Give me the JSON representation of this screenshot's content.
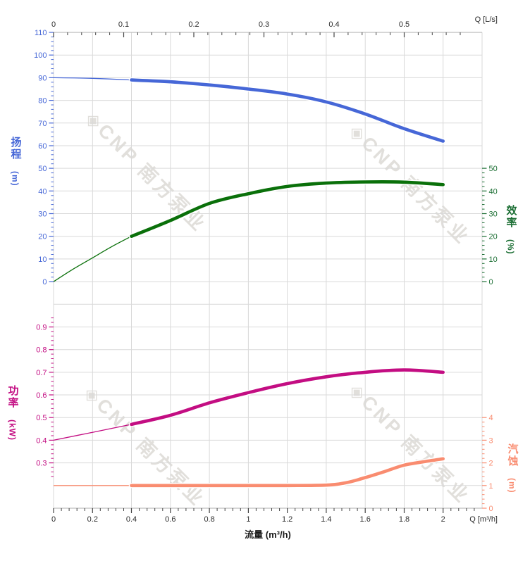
{
  "watermark": {
    "text": "◈CNP 南方泵业"
  },
  "titles": {
    "head": {
      "text": "扬程",
      "unit": "(m)"
    },
    "efficiency": {
      "text": "效率",
      "unit": "(%)"
    },
    "power": {
      "text": "功率",
      "unit": "(kW)"
    },
    "npsh": {
      "text": "汽蚀",
      "unit": "(m)"
    },
    "flow": {
      "text": "流量 (m³/h)"
    },
    "top_axis": {
      "text": "Q [L/s]"
    },
    "bottom_axis": {
      "text": "Q [m³/h]"
    }
  },
  "colors": {
    "head": "#4667d7",
    "efficiency_curve": "#0a700a",
    "efficiency_text": "#1b6e33",
    "power": "#c30d82",
    "npsh": "#f98c70",
    "grid": "#d9d9d9",
    "axis_line": "#bdbdbd",
    "axis_tick": "#444444"
  },
  "chart_data": {
    "type": "line",
    "x_bottom": {
      "unit": "m³/h",
      "range": [
        0,
        2.2
      ],
      "major_values": [
        0,
        0.2,
        0.4,
        0.6,
        0.8,
        1,
        1.2,
        1.4,
        1.6,
        1.8,
        2
      ],
      "major_labels": [
        "0",
        "0.2",
        "0.4",
        "0.6",
        "0.8",
        "1",
        "1.2",
        "1.4",
        "1.6",
        "1.8",
        "2"
      ],
      "minor_step": 0.04,
      "minor_max": 2.2
    },
    "x_top": {
      "unit": "L/s",
      "range": [
        0,
        0.611
      ],
      "major_values": [
        0,
        0.1,
        0.2,
        0.3,
        0.4,
        0.5
      ],
      "major_labels": [
        "0",
        "0.1",
        "0.2",
        "0.3",
        "0.4",
        "0.5"
      ],
      "minor_step": 0.02,
      "minor_max": 0.6
    },
    "y_axes": {
      "head": {
        "side": "left",
        "color": "#4667d7",
        "major_values": [
          0,
          10,
          20,
          30,
          40,
          50,
          60,
          70,
          80,
          90,
          100,
          110
        ],
        "major_labels": [
          "0",
          "10",
          "20",
          "30",
          "40",
          "50",
          "60",
          "70",
          "80",
          "90",
          "100",
          "110"
        ],
        "minor_step": 2,
        "minor_min": 0,
        "minor_max": 110
      },
      "eff": {
        "side": "right",
        "color": "#1b6e33",
        "major_values": [
          0,
          10,
          20,
          30,
          40,
          50
        ],
        "major_labels": [
          "0",
          "10",
          "20",
          "30",
          "40",
          "50"
        ],
        "minor_step": 2,
        "minor_min": 0,
        "minor_max": 50
      },
      "power": {
        "side": "left",
        "color": "#c30d82",
        "major_values": [
          0.3,
          0.4,
          0.5,
          0.6,
          0.7,
          0.8,
          0.9
        ],
        "major_labels": [
          "0.3",
          "0.4",
          "0.5",
          "0.6",
          "0.7",
          "0.8",
          "0.9"
        ],
        "minor_step": 0.02,
        "minor_min": 0.24,
        "minor_max": 0.94
      },
      "npsh": {
        "side": "right",
        "color": "#f98c70",
        "major_values": [
          0,
          1,
          2,
          3,
          4
        ],
        "major_labels": [
          "0",
          "1",
          "2",
          "3",
          "4"
        ],
        "minor_step": 0.2,
        "minor_min": 0,
        "minor_max": 4
      }
    },
    "series": [
      {
        "name": "head",
        "label": "扬程",
        "axis": "head",
        "unit": "m",
        "color": "#4667d7",
        "thin_until": 0.4,
        "x": [
          0,
          0.2,
          0.4,
          0.6,
          0.8,
          1,
          1.2,
          1.4,
          1.6,
          1.8,
          2
        ],
        "y": [
          90,
          89.7,
          89,
          88.2,
          86.8,
          85,
          82.8,
          79.3,
          74,
          67.5,
          62
        ]
      },
      {
        "name": "efficiency",
        "label": "效率",
        "axis": "eff",
        "unit": "%",
        "color": "#0a700a",
        "thin_until": 0.4,
        "x": [
          0,
          0.1,
          0.2,
          0.3,
          0.4,
          0.6,
          0.8,
          1,
          1.2,
          1.4,
          1.6,
          1.8,
          2
        ],
        "y": [
          0,
          5.5,
          10.5,
          15.5,
          20,
          27,
          34.5,
          38.8,
          42,
          43.5,
          44,
          43.9,
          42.8
        ]
      },
      {
        "name": "power",
        "label": "功率",
        "axis": "power",
        "unit": "kW",
        "color": "#c30d82",
        "thin_until": 0.4,
        "x": [
          0,
          0.2,
          0.4,
          0.6,
          0.8,
          1,
          1.2,
          1.4,
          1.6,
          1.8,
          2
        ],
        "y": [
          0.4,
          0.435,
          0.47,
          0.51,
          0.565,
          0.61,
          0.65,
          0.68,
          0.7,
          0.71,
          0.7
        ]
      },
      {
        "name": "npsh",
        "label": "汽蚀",
        "axis": "npsh",
        "unit": "m",
        "color": "#f98c70",
        "thin_until": 0.4,
        "x": [
          0,
          0.4,
          0.8,
          1.2,
          1.4,
          1.5,
          1.6,
          1.7,
          1.8,
          1.9,
          2
        ],
        "y": [
          1,
          1,
          1,
          1,
          1.02,
          1.12,
          1.35,
          1.62,
          1.9,
          2.05,
          2.18
        ]
      }
    ]
  }
}
